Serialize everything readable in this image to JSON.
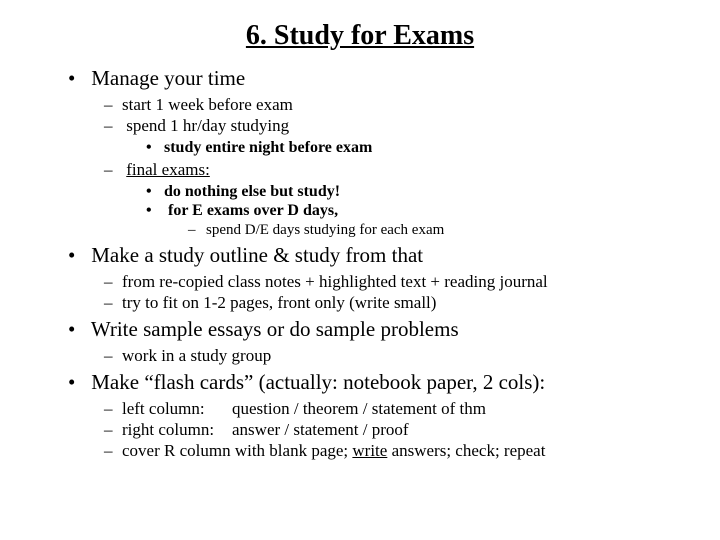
{
  "title": "6.  Study for Exams",
  "b1": "Manage your time",
  "b1a": "start 1 week before exam",
  "b1b": "spend 1 hr/day studying",
  "b1b1": "study entire night before exam",
  "b1c": "final exams:",
  "b1c1": "do nothing else but study!",
  "b1c2": "for E exams over D days,",
  "b1c2a": "spend D/E days studying for each exam",
  "b2": "Make a study outline & study from that",
  "b2a": "from re-copied class notes + highlighted text + reading journal",
  "b2b": "try to fit on 1-2 pages, front only (write small)",
  "b3": "Write sample essays or do sample problems",
  "b3a": "work in a study group",
  "b4": "Make “flash cards” (actually: notebook paper, 2 cols):",
  "b4a_left": "left column:",
  "b4a_right": "question /  theorem  / statement of thm",
  "b4b_left": "right column:",
  "b4b_right": "answer   / statement / proof",
  "b4c_pre": "cover R column with blank page; ",
  "b4c_u": "write",
  "b4c_post": " answers; check; repeat",
  "colors": {
    "text": "#000000",
    "background": "#ffffff"
  },
  "fonts": {
    "family": "Times New Roman",
    "title_size": 28,
    "lvl1_size": 21,
    "lvl2_size": 17,
    "lvl3_size": 16,
    "lvl4_size": 15
  }
}
